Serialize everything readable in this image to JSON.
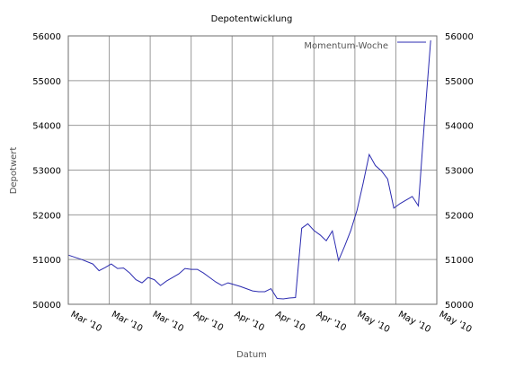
{
  "chart_data": {
    "type": "line",
    "title": "Depotentwicklung",
    "xlabel": "Datum",
    "ylabel": "Depotwert",
    "y_ticks": [
      50000,
      51000,
      52000,
      53000,
      54000,
      55000,
      56000
    ],
    "ylim": [
      50000,
      56000
    ],
    "y_tick_labels": [
      "50000",
      "51000",
      "52000",
      "53000",
      "54000",
      "55000",
      "56000"
    ],
    "right_axis_duplicate": true,
    "x_tick_labels": [
      "Mar '10",
      "Mar '10",
      "Mar '10",
      "Apr '10",
      "Apr '10",
      "Apr '10",
      "Apr '10",
      "May '10",
      "May '10",
      "May '10"
    ],
    "grid": true,
    "legend_placement": "top-right",
    "series": [
      {
        "name": "Momentum-Woche",
        "color": "#2b2bb0",
        "x": [
          0,
          0.55,
          1,
          1.25,
          1.5,
          1.75,
          2,
          2.25,
          2.5,
          2.75,
          3,
          3.25,
          3.5,
          3.75,
          4,
          4.25,
          4.5,
          4.75,
          5,
          5.25,
          5.5,
          5.75,
          6,
          6.25,
          6.5,
          6.75,
          7,
          7.25,
          7.5,
          7.75,
          8,
          8.25,
          8.5,
          8.75,
          9,
          9.25,
          9.5,
          9.75,
          10,
          10.25,
          10.5,
          10.75,
          11,
          11.25,
          11.5,
          11.75,
          12,
          12.25,
          12.5,
          12.75,
          13,
          13.25,
          13.5,
          13.75,
          14,
          14.25,
          14.5,
          14.75
        ],
        "values": [
          51100,
          51000,
          50900,
          50750,
          50820,
          50900,
          50800,
          50810,
          50700,
          50550,
          50480,
          50600,
          50550,
          50420,
          50520,
          50600,
          50680,
          50800,
          50780,
          50780,
          50700,
          50600,
          50500,
          50420,
          50480,
          50440,
          50400,
          50350,
          50300,
          50280,
          50280,
          50350,
          50130,
          50120,
          50140,
          50150,
          51700,
          51800,
          51650,
          51550,
          51420,
          51640,
          50980,
          51300,
          51650,
          52100,
          52700,
          53350,
          53100,
          52980,
          52800,
          52150,
          52250,
          52330,
          52410,
          52200,
          54100,
          55900
        ]
      }
    ]
  }
}
